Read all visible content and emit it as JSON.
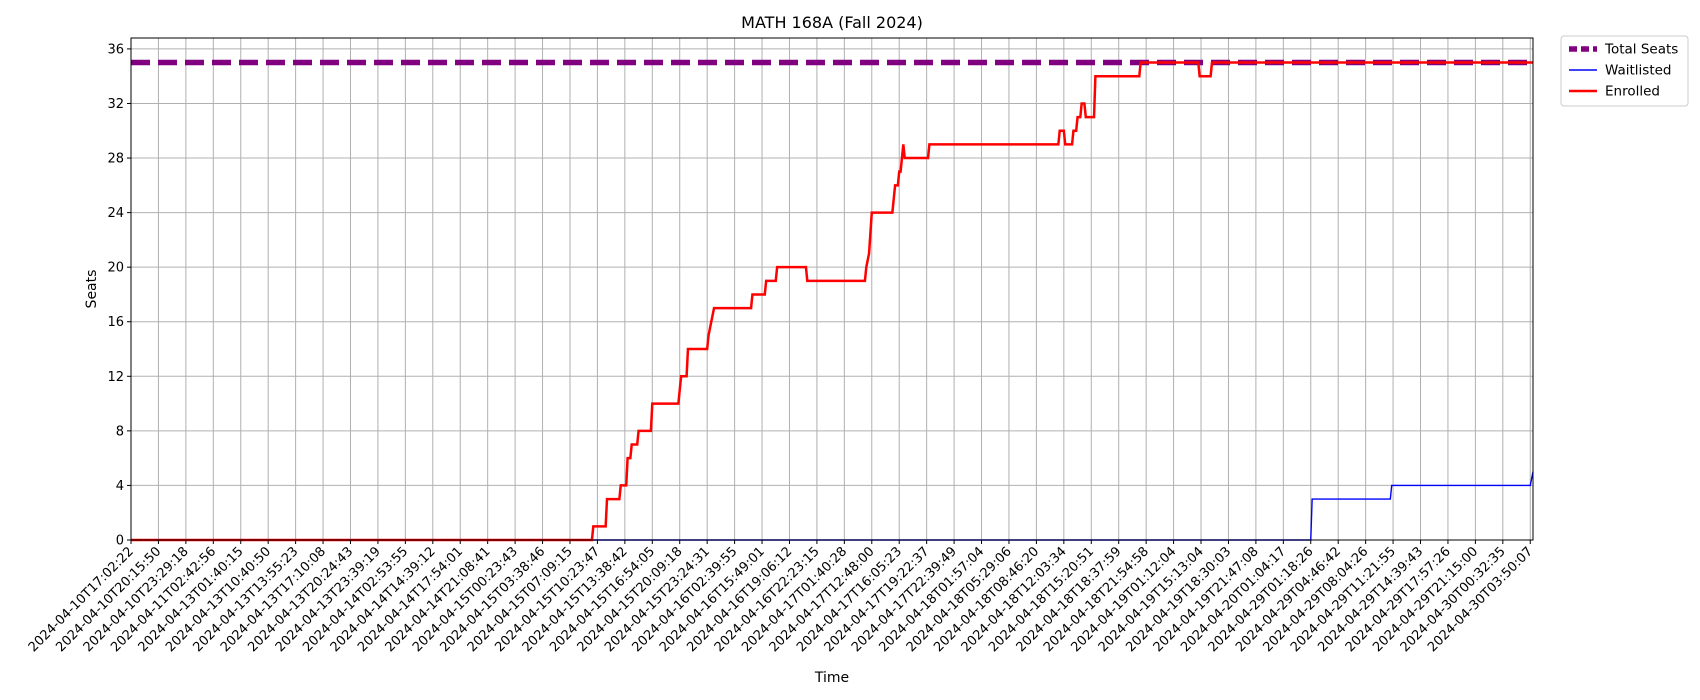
{
  "chart_data": {
    "type": "line",
    "title": "MATH 168A (Fall 2024)",
    "xlabel": "Time",
    "ylabel": "Seats",
    "ylim": [
      0,
      36.8
    ],
    "yticks": [
      0,
      4,
      8,
      12,
      16,
      20,
      24,
      28,
      32,
      36
    ],
    "grid": true,
    "legend_position": "outside-top-right",
    "x_tick_labels": [
      "2024-04-10T17:02:22",
      "2024-04-10T20:15:50",
      "2024-04-10T23:29:18",
      "2024-04-11T02:42:56",
      "2024-04-13T01:40:15",
      "2024-04-13T10:40:50",
      "2024-04-13T13:55:23",
      "2024-04-13T17:10:08",
      "2024-04-13T20:24:43",
      "2024-04-13T23:39:19",
      "2024-04-14T02:53:55",
      "2024-04-14T14:39:12",
      "2024-04-14T17:54:01",
      "2024-04-14T21:08:41",
      "2024-04-15T00:23:43",
      "2024-04-15T03:38:46",
      "2024-04-15T07:09:15",
      "2024-04-15T10:23:47",
      "2024-04-15T13:38:42",
      "2024-04-15T16:54:05",
      "2024-04-15T20:09:18",
      "2024-04-15T23:24:31",
      "2024-04-16T02:39:55",
      "2024-04-16T15:49:01",
      "2024-04-16T19:06:12",
      "2024-04-16T22:23:15",
      "2024-04-17T01:40:28",
      "2024-04-17T12:48:00",
      "2024-04-17T16:05:23",
      "2024-04-17T19:22:37",
      "2024-04-17T22:39:49",
      "2024-04-18T01:57:04",
      "2024-04-18T05:29:06",
      "2024-04-18T08:46:20",
      "2024-04-18T12:03:34",
      "2024-04-18T15:20:51",
      "2024-04-18T18:37:59",
      "2024-04-18T21:54:58",
      "2024-04-19T01:12:04",
      "2024-04-19T15:13:04",
      "2024-04-19T18:30:03",
      "2024-04-19T21:47:08",
      "2024-04-20T01:04:17",
      "2024-04-29T01:18:26",
      "2024-04-29T04:46:42",
      "2024-04-29T08:04:26",
      "2024-04-29T11:21:55",
      "2024-04-29T14:39:43",
      "2024-04-29T17:57:26",
      "2024-04-29T21:15:00",
      "2024-04-30T00:32:35",
      "2024-04-30T03:50:07"
    ],
    "x_range": [
      0,
      51.1
    ],
    "series": [
      {
        "name": "Total Seats",
        "color": "#800080",
        "style": "dashed",
        "points": [
          [
            0,
            35
          ],
          [
            51.1,
            35
          ]
        ]
      },
      {
        "name": "Waitlisted",
        "color": "#0000ff",
        "style": "solid",
        "points": [
          [
            0,
            0
          ],
          [
            43.0,
            0
          ],
          [
            43.05,
            3
          ],
          [
            45.9,
            3
          ],
          [
            45.95,
            4
          ],
          [
            51.0,
            4
          ],
          [
            51.1,
            5
          ]
        ]
      },
      {
        "name": "Enrolled",
        "color": "#ff0000",
        "style": "solid",
        "points": [
          [
            0,
            0
          ],
          [
            16.8,
            0
          ],
          [
            16.85,
            1
          ],
          [
            17.3,
            1
          ],
          [
            17.35,
            3
          ],
          [
            17.8,
            3
          ],
          [
            17.85,
            4
          ],
          [
            18.05,
            4
          ],
          [
            18.1,
            6
          ],
          [
            18.2,
            6
          ],
          [
            18.25,
            7
          ],
          [
            18.45,
            7
          ],
          [
            18.5,
            8
          ],
          [
            18.95,
            8
          ],
          [
            19.0,
            10
          ],
          [
            19.95,
            10
          ],
          [
            20.0,
            11
          ],
          [
            20.05,
            12
          ],
          [
            20.25,
            12
          ],
          [
            20.3,
            14
          ],
          [
            21.0,
            14
          ],
          [
            21.05,
            15
          ],
          [
            21.15,
            16
          ],
          [
            21.25,
            17
          ],
          [
            22.6,
            17
          ],
          [
            22.65,
            18
          ],
          [
            23.1,
            18
          ],
          [
            23.15,
            19
          ],
          [
            23.5,
            19
          ],
          [
            23.55,
            20
          ],
          [
            24.6,
            20
          ],
          [
            24.65,
            19
          ],
          [
            26.75,
            19
          ],
          [
            26.8,
            20
          ],
          [
            26.9,
            21
          ],
          [
            27.0,
            24
          ],
          [
            27.75,
            24
          ],
          [
            27.8,
            25
          ],
          [
            27.85,
            26
          ],
          [
            27.95,
            26
          ],
          [
            28.0,
            27
          ],
          [
            28.05,
            27
          ],
          [
            28.1,
            28
          ],
          [
            28.15,
            29
          ],
          [
            28.2,
            28
          ],
          [
            29.05,
            28
          ],
          [
            29.1,
            29
          ],
          [
            33.8,
            29
          ],
          [
            33.85,
            30
          ],
          [
            34.0,
            30
          ],
          [
            34.05,
            29
          ],
          [
            34.3,
            29
          ],
          [
            34.35,
            30
          ],
          [
            34.45,
            30
          ],
          [
            34.5,
            31
          ],
          [
            34.6,
            31
          ],
          [
            34.65,
            32
          ],
          [
            34.75,
            32
          ],
          [
            34.8,
            31
          ],
          [
            35.1,
            31
          ],
          [
            35.15,
            34
          ],
          [
            36.75,
            34
          ],
          [
            36.8,
            35
          ],
          [
            38.9,
            35
          ],
          [
            38.95,
            34
          ],
          [
            39.35,
            34
          ],
          [
            39.4,
            35
          ],
          [
            51.1,
            35
          ]
        ]
      }
    ]
  }
}
